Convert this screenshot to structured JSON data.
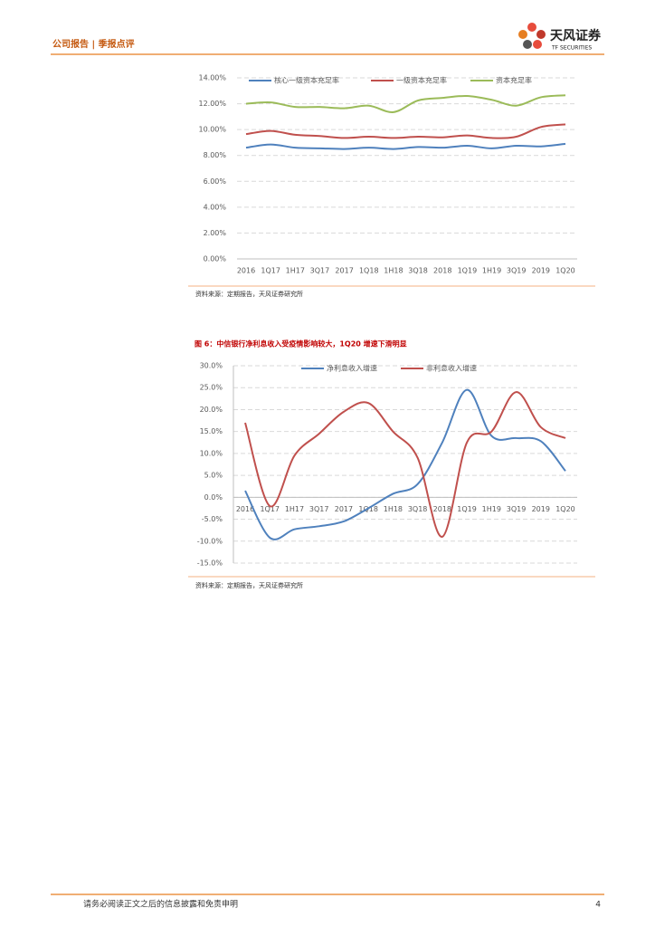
{
  "header": {
    "left": "公司报告 | 季报点评",
    "logo": "天风证券",
    "logo_sub": "TF SECURITIES"
  },
  "chart_data": [
    {
      "type": "line",
      "categories": [
        "2016",
        "1Q17",
        "1H17",
        "3Q17",
        "2017",
        "1Q18",
        "1H18",
        "3Q18",
        "2018",
        "1Q19",
        "1H19",
        "3Q19",
        "2019",
        "1Q20"
      ],
      "series": [
        {
          "name": "核心一级资本充足率",
          "color": "#4f81bd",
          "values": [
            8.6,
            8.85,
            8.6,
            8.55,
            8.5,
            8.6,
            8.5,
            8.65,
            8.6,
            8.75,
            8.55,
            8.75,
            8.7,
            8.9
          ]
        },
        {
          "name": "一级资本充足率",
          "color": "#c0504d",
          "values": [
            9.65,
            9.9,
            9.6,
            9.5,
            9.35,
            9.45,
            9.35,
            9.45,
            9.4,
            9.55,
            9.35,
            9.45,
            10.2,
            10.4
          ]
        },
        {
          "name": "资本充足率",
          "color": "#9bbb59",
          "values": [
            12.0,
            12.1,
            11.75,
            11.75,
            11.65,
            11.85,
            11.35,
            12.25,
            12.45,
            12.6,
            12.3,
            11.85,
            12.5,
            12.65
          ]
        }
      ],
      "ylim": [
        0,
        14
      ],
      "yticks": [
        {
          "value": 0,
          "label": "0.00%"
        },
        {
          "value": 2,
          "label": "2.00%"
        },
        {
          "value": 4,
          "label": "4.00%"
        },
        {
          "value": 6,
          "label": "6.00%"
        },
        {
          "value": 8,
          "label": "8.00%"
        },
        {
          "value": 10,
          "label": "10.00%"
        },
        {
          "value": 12,
          "label": "12.00%"
        },
        {
          "value": 14,
          "label": "14.00%"
        }
      ],
      "grid": true,
      "source": "资料来源：定期报告，天风证券研究所"
    },
    {
      "type": "line",
      "title": "图 6：中信银行净利息收入受疫情影响较大，1Q20 增速下滑明显",
      "categories": [
        "2016",
        "1Q17",
        "1H17",
        "3Q17",
        "2017",
        "1Q18",
        "1H18",
        "3Q18",
        "2018",
        "1Q19",
        "1H19",
        "3Q19",
        "2019",
        "1Q20"
      ],
      "series": [
        {
          "name": "净利息收入增速",
          "color": "#4f81bd",
          "values": [
            1.5,
            -9.2,
            -7.3,
            -6.6,
            -5.5,
            -2.5,
            0.8,
            3,
            12.5,
            24.5,
            14,
            13.5,
            12.8,
            6
          ]
        },
        {
          "name": "非利息收入增速",
          "color": "#c0504d",
          "values": [
            17,
            -2,
            9.5,
            14.5,
            19.5,
            21.5,
            15,
            9,
            -9,
            12.5,
            15,
            24,
            16,
            13.5
          ]
        }
      ],
      "ylim": [
        -15,
        30
      ],
      "yticks": [
        {
          "value": -15,
          "label": "-15.0%"
        },
        {
          "value": -10,
          "label": "-10.0%"
        },
        {
          "value": -5,
          "label": "-5.0%"
        },
        {
          "value": 0,
          "label": "0.0%"
        },
        {
          "value": 5,
          "label": "5.0%"
        },
        {
          "value": 10,
          "label": "10.0%"
        },
        {
          "value": 15,
          "label": "15.0%"
        },
        {
          "value": 20,
          "label": "20.0%"
        },
        {
          "value": 25,
          "label": "25.0%"
        },
        {
          "value": 30,
          "label": "30.0%"
        }
      ],
      "grid": true,
      "source": "资料来源：定期报告，天风证券研究所"
    }
  ],
  "footer": {
    "disclaimer": "请务必阅读正文之后的信息披露和免责申明",
    "page": "4"
  }
}
